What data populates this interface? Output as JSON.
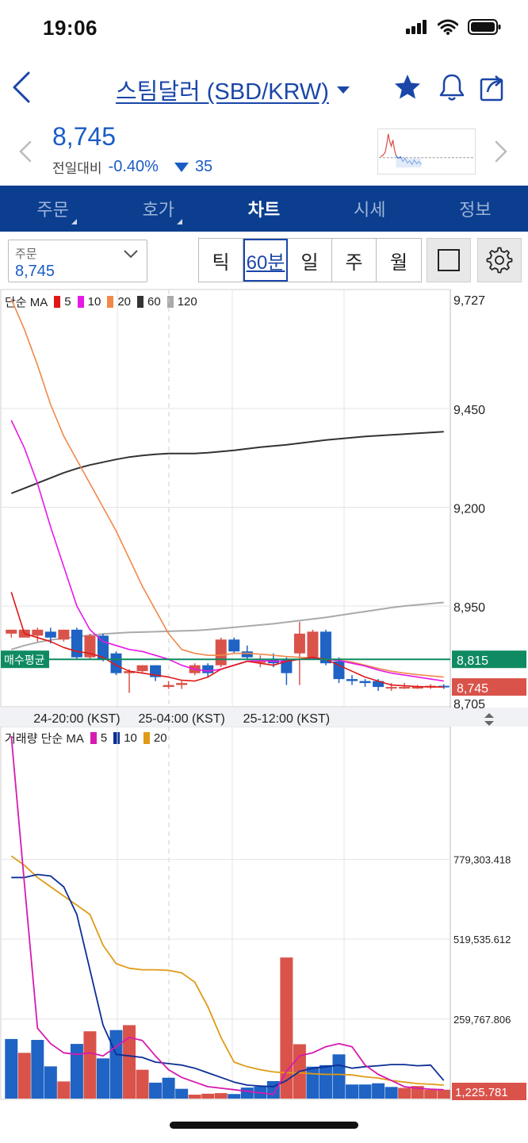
{
  "status_bar": {
    "time": "19:06"
  },
  "header": {
    "title": "스팀달러 (SBD/KRW)"
  },
  "quote": {
    "price": "8,745",
    "change_label": "전일대비",
    "change_pct": "-0.40%",
    "change_amount": "35"
  },
  "tabs": [
    {
      "label": "주문",
      "active": false,
      "has_corner": true
    },
    {
      "label": "호가",
      "active": false,
      "has_corner": true
    },
    {
      "label": "차트",
      "active": true,
      "has_corner": false
    },
    {
      "label": "시세",
      "active": false,
      "has_corner": false
    },
    {
      "label": "정보",
      "active": false,
      "has_corner": false
    }
  ],
  "order_select": {
    "label": "주문",
    "value": "8,745"
  },
  "periods": [
    {
      "label": "틱",
      "active": false
    },
    {
      "label": "60분",
      "active": true
    },
    {
      "label": "일",
      "active": false
    },
    {
      "label": "주",
      "active": false
    },
    {
      "label": "월",
      "active": false
    }
  ],
  "colors": {
    "up": "#d9534a",
    "down": "#1f63c4",
    "avg": "#0f8a62",
    "ma5": "#e01818",
    "ma10": "#e619e6",
    "ma20": "#f0884a",
    "ma60": "#333333",
    "ma120": "#aaaaaa",
    "vma5": "#d61ab0",
    "vma10": "#0c2f96",
    "vma20": "#e09a16"
  },
  "price_chart": {
    "legend": {
      "label": "단순 MA",
      "periods": [
        "5",
        "10",
        "20",
        "60",
        "120"
      ]
    },
    "ylim": [
      8705,
      9727
    ],
    "y_ticks": [
      "9,727",
      "9,450",
      "9,200",
      "8,950",
      "8,705"
    ],
    "tick_values": [
      9727,
      9450,
      9200,
      8950,
      8705
    ],
    "avg_label": "매수평균",
    "avg_value": "8,815",
    "avg_price": 8815,
    "current_value": "8,745",
    "current_price": 8745,
    "x_labels": [
      "24-20:00 (KST)",
      "25-04:00 (KST)",
      "25-12:00 (KST)"
    ],
    "x_label_index": [
      5,
      13,
      21
    ],
    "candles": [
      [
        8880,
        8890,
        8870,
        8880
      ],
      [
        8870,
        8890,
        8875,
        8890
      ],
      [
        8875,
        8890,
        8860,
        8895
      ],
      [
        8885,
        8870,
        8855,
        8895
      ],
      [
        8865,
        8890,
        8860,
        8890
      ],
      [
        8890,
        8820,
        8815,
        8895
      ],
      [
        8820,
        8875,
        8815,
        8880
      ],
      [
        8875,
        8815,
        8810,
        8880
      ],
      [
        8830,
        8780,
        8775,
        8835
      ],
      [
        8780,
        8785,
        8730,
        8790
      ],
      [
        8785,
        8800,
        8780,
        8800
      ],
      [
        8800,
        8770,
        8760,
        8800
      ],
      [
        8745,
        8750,
        8740,
        8760
      ],
      [
        8750,
        8755,
        8740,
        8760
      ],
      [
        8780,
        8800,
        8775,
        8805
      ],
      [
        8800,
        8780,
        8770,
        8805
      ],
      [
        8800,
        8865,
        8795,
        8870
      ],
      [
        8865,
        8835,
        8830,
        8870
      ],
      [
        8835,
        8820,
        8815,
        8850
      ],
      [
        8810,
        8810,
        8795,
        8825
      ],
      [
        8815,
        8805,
        8795,
        8830
      ],
      [
        8815,
        8780,
        8750,
        8820
      ],
      [
        8830,
        8880,
        8750,
        8910
      ],
      [
        8820,
        8885,
        8815,
        8890
      ],
      [
        8885,
        8805,
        8800,
        8890
      ],
      [
        8810,
        8765,
        8755,
        8820
      ],
      [
        8765,
        8760,
        8750,
        8775
      ],
      [
        8760,
        8755,
        8745,
        8765
      ],
      [
        8760,
        8745,
        8735,
        8765
      ],
      [
        8745,
        8745,
        8735,
        8755
      ],
      [
        8745,
        8745,
        8740,
        8755
      ],
      [
        8745,
        8745,
        8740,
        8750
      ],
      [
        8745,
        8748,
        8740,
        8752
      ],
      [
        8748,
        8745,
        8740,
        8752
      ]
    ],
    "ma5": [
      8985,
      8880,
      8870,
      8860,
      8845,
      8835,
      8830,
      8820,
      8800,
      8785,
      8780,
      8775,
      8770,
      8762,
      8760,
      8770,
      8790,
      8800,
      8810,
      8805,
      8800,
      8810,
      8815,
      8820,
      8815,
      8800,
      8785,
      8770,
      8760,
      8750,
      8748,
      8746,
      8745,
      8745
    ],
    "ma10": [
      9420,
      9350,
      9260,
      9150,
      9050,
      8950,
      8890,
      8860,
      8850,
      8840,
      8835,
      8825,
      8815,
      8800,
      8790,
      8785,
      8790,
      8800,
      8810,
      8812,
      8810,
      8810,
      8815,
      8818,
      8815,
      8812,
      8805,
      8798,
      8788,
      8780,
      8775,
      8770,
      8765,
      8760
    ],
    "ma20": [
      9727,
      9650,
      9560,
      9460,
      9380,
      9320,
      9260,
      9200,
      9140,
      9070,
      9000,
      8940,
      8880,
      8840,
      8830,
      8825,
      8825,
      8830,
      8830,
      8828,
      8825,
      8822,
      8820,
      8818,
      8815,
      8812,
      8808,
      8800,
      8792,
      8785,
      8780,
      8776,
      8773,
      8770
    ],
    "ma60": [
      9235,
      9248,
      9261,
      9274,
      9287,
      9298,
      9307,
      9314,
      9321,
      9327,
      9331,
      9334,
      9336,
      9336,
      9336,
      9338,
      9341,
      9344,
      9348,
      9352,
      9355,
      9358,
      9362,
      9366,
      9370,
      9373,
      9376,
      9379,
      9381,
      9383,
      9385,
      9387,
      9389,
      9391
    ],
    "ma120": [
      8840,
      8850,
      8858,
      8864,
      8868,
      8872,
      8876,
      8879,
      8881,
      8883,
      8884,
      8885,
      8886,
      8887,
      8888,
      8890,
      8893,
      8896,
      8899,
      8902,
      8905,
      8909,
      8913,
      8917,
      8921,
      8926,
      8931,
      8936,
      8941,
      8946,
      8950,
      8953,
      8956,
      8959
    ]
  },
  "volume_chart": {
    "legend": {
      "label": "거래량 단순 MA",
      "periods": [
        "5",
        "10",
        "20"
      ]
    },
    "ylim": [
      1225.781,
      1180000
    ],
    "y_ticks": [
      "779,303.418",
      "519,535.612",
      "259,767.806",
      "1,225.781"
    ],
    "tick_values": [
      779303.418,
      519535.612,
      259767.806,
      1225.781
    ],
    "volumes": [
      195000,
      150000,
      192000,
      106000,
      57000,
      179000,
      220000,
      132000,
      224000,
      240000,
      95000,
      53000,
      69000,
      33000,
      14000,
      17000,
      19000,
      16000,
      37000,
      40000,
      58000,
      460000,
      178000,
      105000,
      110000,
      145000,
      47000,
      47000,
      51000,
      39000,
      36000,
      42000,
      30000,
      30000
    ],
    "up": [
      false,
      true,
      false,
      false,
      true,
      false,
      true,
      false,
      false,
      true,
      true,
      false,
      false,
      false,
      true,
      true,
      true,
      false,
      false,
      false,
      false,
      true,
      true,
      false,
      false,
      false,
      false,
      false,
      false,
      false,
      true,
      true,
      true,
      true
    ],
    "vma5": [
      1180000,
      700000,
      230000,
      180000,
      150000,
      145000,
      150000,
      140000,
      170000,
      200000,
      190000,
      140000,
      95000,
      70000,
      55000,
      40000,
      35000,
      30000,
      25000,
      20000,
      15000,
      90000,
      140000,
      150000,
      170000,
      180000,
      170000,
      110000,
      80000,
      60000,
      40000,
      35000,
      32000,
      30000
    ],
    "vma10": [
      720000,
      720000,
      730000,
      725000,
      690000,
      600000,
      420000,
      240000,
      145000,
      140000,
      135000,
      120000,
      115000,
      110000,
      100000,
      85000,
      70000,
      55000,
      45000,
      42000,
      40000,
      60000,
      90000,
      100000,
      105000,
      110000,
      100000,
      105000,
      108000,
      112000,
      112000,
      108000,
      110000,
      60000
    ],
    "vma20": [
      790000,
      760000,
      720000,
      690000,
      660000,
      630000,
      600000,
      500000,
      440000,
      425000,
      420000,
      420000,
      418000,
      410000,
      380000,
      300000,
      200000,
      120000,
      105000,
      95000,
      88000,
      85000,
      85000,
      82000,
      80000,
      80000,
      78000,
      72000,
      68000,
      60000,
      55000,
      50000,
      48000,
      45000
    ]
  }
}
